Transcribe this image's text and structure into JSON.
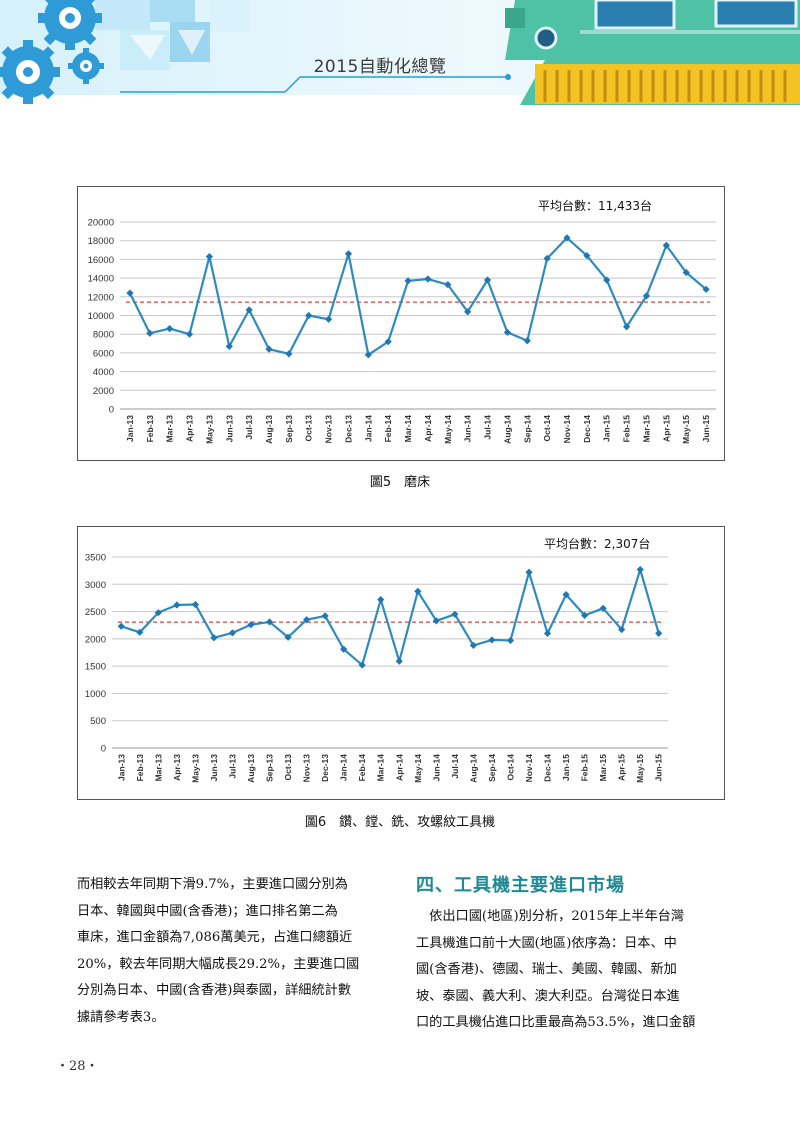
{
  "header": {
    "title": "2015自動化總覽",
    "colors": {
      "banner_light": "#e7f7fd",
      "banner_blue": "#2d9bd6",
      "accent_teal": "#1d8a95",
      "board_green": "#4fc1a5",
      "board_yellow": "#f3c323"
    }
  },
  "chart_data": [
    {
      "type": "line",
      "title": "",
      "annotation": "平均台數：11,433台",
      "average": 11433,
      "categories": [
        "Jan-13",
        "Feb-13",
        "Mar-13",
        "Apr-13",
        "May-13",
        "Jun-13",
        "Jul-13",
        "Aug-13",
        "Sep-13",
        "Oct-13",
        "Nov-13",
        "Dec-13",
        "Jan-14",
        "Feb-14",
        "Mar-14",
        "Apr-14",
        "May-14",
        "Jun-14",
        "Jul-14",
        "Aug-14",
        "Sep-14",
        "Oct-14",
        "Nov-14",
        "Dec-14",
        "Jan-15",
        "Feb-15",
        "Mar-15",
        "Apr-15",
        "May-15",
        "Jun-15"
      ],
      "series": [
        {
          "values": [
            12400,
            8100,
            8600,
            8000,
            16300,
            6700,
            10600,
            6400,
            5900,
            10000,
            9600,
            16600,
            5800,
            7200,
            13700,
            13900,
            13300,
            10400,
            13800,
            8200,
            7300,
            16100,
            18300,
            16400,
            13800,
            8800,
            12100,
            17500,
            14600,
            12800
          ]
        }
      ],
      "ylim": [
        0,
        20000
      ],
      "yticks": [
        0,
        2000,
        4000,
        6000,
        8000,
        10000,
        12000,
        14000,
        16000,
        18000,
        20000
      ],
      "xlabel": "",
      "ylabel": "",
      "grid": true,
      "line_color": "#2e8bc0",
      "avg_color": "#e0403a"
    },
    {
      "type": "line",
      "title": "",
      "annotation": "平均台數：2,307台",
      "average": 2307,
      "categories": [
        "Jan-13",
        "Feb-13",
        "Mar-13",
        "Apr-13",
        "May-13",
        "Jun-13",
        "Jul-13",
        "Aug-13",
        "Sep-13",
        "Oct-13",
        "Nov-13",
        "Dec-13",
        "Jan-14",
        "Feb-14",
        "Mar-14",
        "Apr-14",
        "May-14",
        "Jun-14",
        "Jul-14",
        "Aug-14",
        "Sep-14",
        "Oct-14",
        "Nov-14",
        "Dec-14",
        "Jan-15",
        "Feb-15",
        "Mar-15",
        "Apr-15",
        "May-15",
        "Jun-15"
      ],
      "series": [
        {
          "values": [
            2230,
            2120,
            2480,
            2620,
            2630,
            2020,
            2110,
            2260,
            2310,
            2030,
            2350,
            2420,
            1810,
            1520,
            2720,
            1590,
            2870,
            2330,
            2450,
            1880,
            1980,
            1970,
            3220,
            2100,
            2810,
            2430,
            2560,
            2170,
            3270,
            2100
          ]
        }
      ],
      "ylim": [
        0,
        3500
      ],
      "yticks": [
        0,
        500,
        1000,
        1500,
        2000,
        2500,
        3000,
        3500
      ],
      "xlabel": "",
      "ylabel": "",
      "grid": true,
      "line_color": "#2e8bc0",
      "avg_color": "#e0403a"
    }
  ],
  "captions": {
    "fig5": "圖5　磨床",
    "fig6": "圖6　鑽、鏜、銑、攻螺紋工具機"
  },
  "body": {
    "left_lines": [
      "而相較去年同期下滑9.7%，主要進口國分別為",
      "日本、韓國與中國(含香港)；進口排名第二為",
      "車床，進口金額為7,086萬美元，占進口總額近",
      "20%，較去年同期大幅成長29.2%，主要進口國",
      "分別為日本、中國(含香港)與泰國，詳細統計數",
      "據請參考表3。"
    ],
    "section_heading": "四、工具機主要進口市場",
    "right_lines": [
      "　依出口國(地區)別分析，2015年上半年台灣",
      "工具機進口前十大國(地區)依序為：日本、中",
      "國(含香港)、德國、瑞士、美國、韓國、新加",
      "坡、泰國、義大利、澳大利亞。台灣從日本進",
      "口的工具機佔進口比重最高為53.5%，進口金額"
    ]
  },
  "page_number": "・28・"
}
